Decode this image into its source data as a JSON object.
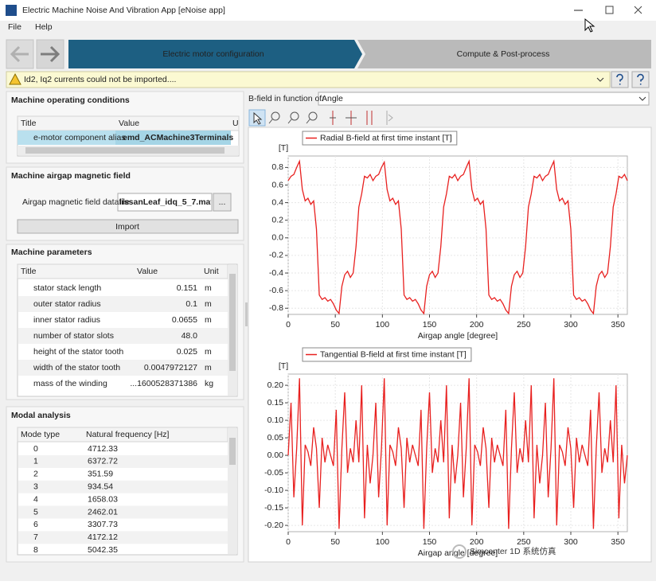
{
  "window": {
    "title": "Electric Machine Noise And Vibration App [eNoise app]"
  },
  "menu": [
    "File",
    "Help"
  ],
  "steps": [
    "Electric motor configuration",
    "Compute & Post-process"
  ],
  "warning": "Id2, Iq2 currents could not be imported....",
  "operating_conditions": {
    "title": "Machine operating conditions",
    "columns": [
      "Title",
      "Value",
      "U"
    ],
    "rows": [
      [
        "e-motor component alias",
        "emd_ACMachine3Terminals"
      ]
    ]
  },
  "airgap": {
    "title": "Machine airgap magnetic field",
    "label": "Airgap magnetic field datafile",
    "file": "lissanLeaf_idq_5_7.mat",
    "browse": "...",
    "button": "Import"
  },
  "parameters": {
    "title": "Machine parameters",
    "columns": [
      "Title",
      "Value",
      "Unit"
    ],
    "rows": [
      {
        "title": "stator stack length",
        "value": "0.151",
        "unit": "m"
      },
      {
        "title": "outer stator radius",
        "value": "0.1",
        "unit": "m"
      },
      {
        "title": "inner stator radius",
        "value": "0.0655",
        "unit": "m"
      },
      {
        "title": "number of stator slots",
        "value": "48.0"
      },
      {
        "title": "height of the stator tooth",
        "value": "0.025",
        "unit": "m"
      },
      {
        "title": "width of the stator tooth",
        "value": "0.0047972127",
        "unit": "m"
      },
      {
        "title": "mass of the winding",
        "value": "...1600528371386",
        "unit": "kg"
      }
    ]
  },
  "modal": {
    "title": "Modal analysis",
    "columns": [
      "Mode type",
      "Natural frequency [Hz]"
    ],
    "rows": [
      [
        "0",
        "4712.33"
      ],
      [
        "1",
        "6372.72"
      ],
      [
        "2",
        "351.59"
      ],
      [
        "3",
        "934.54"
      ],
      [
        "4",
        "1658.03"
      ],
      [
        "5",
        "2462.01"
      ],
      [
        "6",
        "3307.73"
      ],
      [
        "7",
        "4172.12"
      ],
      [
        "8",
        "5042.35"
      ]
    ]
  },
  "plot_panel": {
    "label": "B-field in function of:",
    "option": "Angle"
  },
  "watermark": "Simcenter 1D 系统仿真",
  "chart_data": [
    {
      "type": "line",
      "ylabel": "[T]",
      "xlabel": "Airgap angle [degree]",
      "grid": true,
      "x": [
        0,
        3,
        6,
        9,
        12,
        15,
        18,
        21,
        24,
        27,
        30,
        33,
        36,
        39,
        42,
        45,
        48,
        51,
        54,
        57,
        60,
        63,
        66,
        69,
        72,
        75,
        78,
        81,
        84,
        87,
        90,
        93,
        96,
        99,
        102,
        105,
        108,
        111,
        114,
        117,
        120,
        123,
        126,
        129,
        132,
        135,
        138,
        141,
        144,
        147,
        150,
        153,
        156,
        159,
        162,
        165,
        168,
        171,
        174,
        177,
        180,
        183,
        186,
        189,
        192,
        195,
        198,
        201,
        204,
        207,
        210,
        213,
        216,
        219,
        222,
        225,
        228,
        231,
        234,
        237,
        240,
        243,
        246,
        249,
        252,
        255,
        258,
        261,
        264,
        267,
        270,
        273,
        276,
        279,
        282,
        285,
        288,
        291,
        294,
        297,
        300,
        303,
        306,
        309,
        312,
        315,
        318,
        321,
        324,
        327,
        330,
        333,
        336,
        339,
        342,
        345,
        348,
        351,
        354,
        357,
        360
      ],
      "series": [
        {
          "name": "Radial B-field at first time instant [T]",
          "color": "#e8201f",
          "values": [
            0.65,
            0.7,
            0.72,
            0.8,
            0.87,
            0.55,
            0.42,
            0.45,
            0.38,
            0.42,
            0.1,
            -0.65,
            -0.7,
            -0.68,
            -0.72,
            -0.7,
            -0.75,
            -0.82,
            -0.86,
            -0.55,
            -0.42,
            -0.38,
            -0.45,
            -0.4,
            -0.1,
            0.35,
            0.5,
            0.7,
            0.68,
            0.72,
            0.65,
            0.7,
            0.72,
            0.8,
            0.86,
            0.55,
            0.42,
            0.45,
            0.38,
            0.42,
            0.1,
            -0.65,
            -0.7,
            -0.68,
            -0.72,
            -0.7,
            -0.75,
            -0.82,
            -0.86,
            -0.55,
            -0.42,
            -0.38,
            -0.45,
            -0.4,
            -0.1,
            0.35,
            0.5,
            0.7,
            0.68,
            0.72,
            0.65,
            0.7,
            0.72,
            0.8,
            0.87,
            0.55,
            0.42,
            0.45,
            0.38,
            0.42,
            0.1,
            -0.65,
            -0.7,
            -0.68,
            -0.72,
            -0.7,
            -0.75,
            -0.82,
            -0.86,
            -0.55,
            -0.42,
            -0.38,
            -0.45,
            -0.4,
            -0.1,
            0.35,
            0.5,
            0.7,
            0.68,
            0.72,
            0.65,
            0.7,
            0.72,
            0.8,
            0.87,
            0.55,
            0.42,
            0.45,
            0.38,
            0.42,
            0.1,
            -0.65,
            -0.7,
            -0.68,
            -0.72,
            -0.7,
            -0.75,
            -0.82,
            -0.86,
            -0.55,
            -0.42,
            -0.38,
            -0.45,
            -0.4,
            -0.1,
            0.35,
            0.5,
            0.7,
            0.68,
            0.72,
            0.65
          ]
        }
      ],
      "xlim": [
        0,
        360
      ],
      "xticks": [
        0,
        50,
        100,
        150,
        200,
        250,
        300,
        350
      ],
      "ylim": [
        -0.87,
        0.93
      ],
      "yticks": [
        -0.8,
        -0.6,
        -0.4,
        -0.2,
        {
          "value": 0,
          "label": "0.0"
        },
        0.2,
        0.4,
        0.6,
        0.8
      ]
    },
    {
      "type": "line",
      "ylabel": "[T]",
      "xlabel": "Airgap angle [degree]",
      "grid": true,
      "x": [
        0,
        3,
        6,
        9,
        12,
        15,
        18,
        21,
        24,
        27,
        30,
        33,
        36,
        39,
        42,
        45,
        48,
        51,
        54,
        57,
        60,
        63,
        66,
        69,
        72,
        75,
        78,
        81,
        84,
        87,
        90,
        93,
        96,
        99,
        102,
        105,
        108,
        111,
        114,
        117,
        120,
        123,
        126,
        129,
        132,
        135,
        138,
        141,
        144,
        147,
        150,
        153,
        156,
        159,
        162,
        165,
        168,
        171,
        174,
        177,
        180,
        183,
        186,
        189,
        192,
        195,
        198,
        201,
        204,
        207,
        210,
        213,
        216,
        219,
        222,
        225,
        228,
        231,
        234,
        237,
        240,
        243,
        246,
        249,
        252,
        255,
        258,
        261,
        264,
        267,
        270,
        273,
        276,
        279,
        282,
        285,
        288,
        291,
        294,
        297,
        300,
        303,
        306,
        309,
        312,
        315,
        318,
        321,
        324,
        327,
        330,
        333,
        336,
        339,
        342,
        345,
        348,
        351,
        354,
        357,
        360
      ],
      "series": [
        {
          "name": "Tangential B-field at first time instant [T]",
          "color": "#e8201f",
          "values": [
            0.0,
            0.15,
            -0.12,
            0.02,
            0.22,
            -0.2,
            0.03,
            0.01,
            -0.03,
            0.08,
            0.02,
            -0.15,
            0.05,
            -0.02,
            0.03,
            0.0,
            -0.03,
            0.13,
            -0.21,
            0.02,
            0.18,
            -0.05,
            0.02,
            -0.02,
            0.1,
            -0.02,
            0.2,
            -0.18,
            0.03,
            -0.08,
            0.0,
            0.15,
            -0.12,
            0.02,
            0.22,
            -0.2,
            0.03,
            0.01,
            -0.03,
            0.08,
            0.02,
            -0.15,
            0.05,
            -0.02,
            0.03,
            0.0,
            -0.03,
            0.13,
            -0.21,
            0.02,
            0.18,
            -0.05,
            0.02,
            -0.02,
            0.1,
            -0.02,
            0.2,
            -0.18,
            0.03,
            -0.08,
            0.0,
            0.15,
            -0.12,
            0.02,
            0.22,
            -0.2,
            0.03,
            0.01,
            -0.03,
            0.08,
            0.02,
            -0.15,
            0.05,
            -0.02,
            0.03,
            0.0,
            -0.03,
            0.13,
            -0.21,
            0.02,
            0.18,
            -0.05,
            0.02,
            -0.02,
            0.1,
            -0.02,
            0.2,
            -0.18,
            0.03,
            -0.08,
            0.0,
            0.15,
            -0.12,
            0.02,
            0.22,
            -0.2,
            0.03,
            0.01,
            -0.03,
            0.08,
            0.02,
            -0.15,
            0.05,
            -0.02,
            0.03,
            0.0,
            -0.03,
            0.13,
            -0.21,
            0.02,
            0.18,
            -0.05,
            0.02,
            -0.02,
            0.1,
            -0.02,
            0.2,
            -0.18,
            0.03,
            -0.08,
            0.0
          ]
        }
      ],
      "xlim": [
        0,
        360
      ],
      "xticks": [
        0,
        50,
        100,
        150,
        200,
        250,
        300,
        350
      ],
      "ylim": [
        -0.218,
        0.232
      ],
      "yticks": [
        {
          "value": -0.2,
          "label": "-0.20"
        },
        {
          "value": -0.15,
          "label": "-0.15"
        },
        {
          "value": -0.1,
          "label": "-0.10"
        },
        {
          "value": -0.05,
          "label": "-0.05"
        },
        {
          "value": 0,
          "label": "0.00"
        },
        {
          "value": 0.05,
          "label": "0.05"
        },
        {
          "value": 0.1,
          "label": "0.10"
        },
        {
          "value": 0.15,
          "label": "0.15"
        },
        {
          "value": 0.2,
          "label": "0.20"
        }
      ]
    }
  ]
}
